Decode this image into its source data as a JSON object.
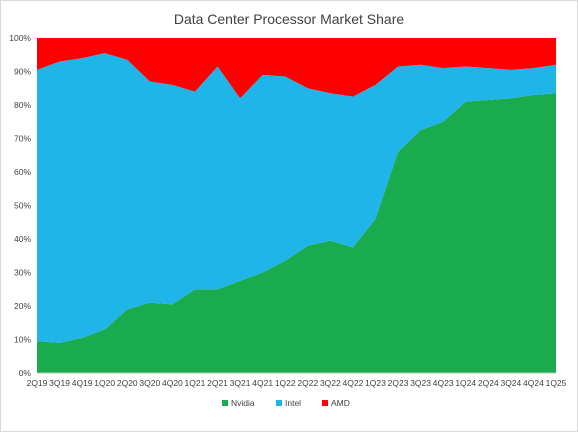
{
  "chart_data": {
    "type": "area",
    "stacking": "percent",
    "title": "Data Center Processor Market Share",
    "xlabel": "",
    "ylabel": "",
    "categories": [
      "2Q19",
      "3Q19",
      "4Q19",
      "1Q20",
      "2Q20",
      "3Q20",
      "4Q20",
      "1Q21",
      "2Q21",
      "3Q21",
      "4Q21",
      "1Q22",
      "2Q22",
      "3Q22",
      "4Q22",
      "1Q23",
      "2Q23",
      "3Q23",
      "4Q23",
      "1Q24",
      "2Q24",
      "3Q24",
      "4Q24",
      "1Q25"
    ],
    "ylim": [
      0,
      100
    ],
    "yticks": [
      "0%",
      "10%",
      "20%",
      "30%",
      "40%",
      "50%",
      "60%",
      "70%",
      "80%",
      "90%",
      "100%"
    ],
    "grid": false,
    "legend_position": "bottom",
    "series": [
      {
        "name": "Nvidia",
        "color": "#1aab4e",
        "values": [
          9.5,
          9,
          10.5,
          13,
          19,
          21,
          20.5,
          25,
          25,
          27.5,
          30,
          33.5,
          38,
          39.5,
          37.5,
          46,
          66,
          72.5,
          75,
          81,
          81.5,
          82,
          83,
          83.5
        ]
      },
      {
        "name": "Intel",
        "color": "#1fb5e8",
        "values": [
          81,
          84,
          83.5,
          82.5,
          74.5,
          66,
          65.5,
          59,
          66.5,
          54.5,
          59,
          55,
          47,
          44,
          45,
          40,
          25.5,
          19.5,
          16,
          10.5,
          9.5,
          8.5,
          8,
          8.5
        ]
      },
      {
        "name": "AMD",
        "color": "#ff0000",
        "values": [
          9.5,
          7,
          6,
          4.5,
          6.5,
          13,
          14,
          16,
          8.5,
          18,
          11,
          11.5,
          15,
          16.5,
          17.5,
          14,
          8.5,
          8,
          9,
          8.5,
          9,
          9.5,
          9,
          8
        ]
      }
    ]
  }
}
